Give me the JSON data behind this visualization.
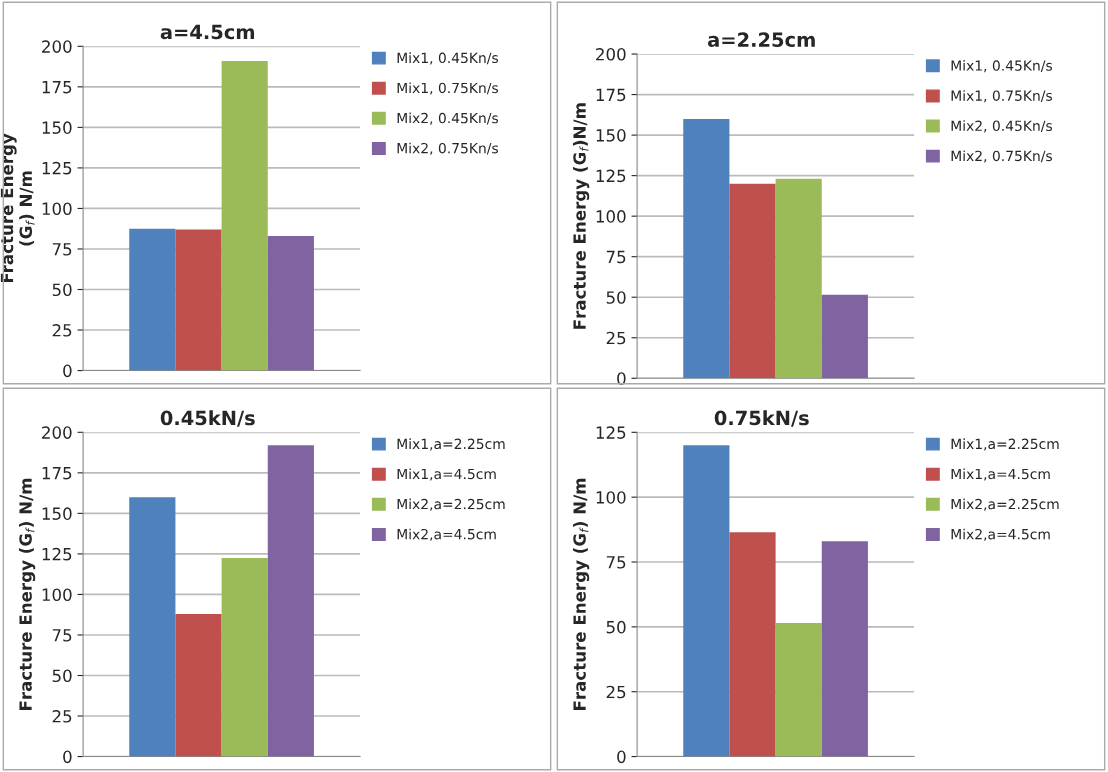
{
  "chart_data": [
    {
      "type": "bar",
      "title": "a=4.5cm",
      "ylabel": "Fracture Energy\n(G$_{f}$) N/m",
      "categories": [
        null
      ],
      "ylim": [
        0,
        200
      ],
      "yticks": [
        0,
        25,
        50,
        75,
        100,
        125,
        150,
        175,
        200
      ],
      "grid": "y",
      "legend": "right",
      "series": [
        {
          "name": "Mix1, 0.45Kn/s",
          "color": "#4f81bd",
          "values": [
            87.5
          ]
        },
        {
          "name": "Mix1, 0.75Kn/s",
          "color": "#c0504d",
          "values": [
            87
          ]
        },
        {
          "name": "Mix2, 0.45Kn/s",
          "color": "#9bbb59",
          "values": [
            191
          ]
        },
        {
          "name": "Mix2, 0.75Kn/s",
          "color": "#8064a2",
          "values": [
            83
          ]
        }
      ]
    },
    {
      "type": "bar",
      "title": "a=2.25cm",
      "ylabel": "Fracture Energy (G$_{f}$)N/m",
      "categories": [
        null
      ],
      "ylim": [
        0,
        200
      ],
      "yticks": [
        0,
        25,
        50,
        75,
        100,
        125,
        150,
        175,
        200
      ],
      "grid": "y",
      "legend": "right",
      "series": [
        {
          "name": "Mix1, 0.45Kn/s",
          "color": "#4f81bd",
          "values": [
            160
          ]
        },
        {
          "name": "Mix1, 0.75Kn/s",
          "color": "#c0504d",
          "values": [
            120
          ]
        },
        {
          "name": "Mix2, 0.45Kn/s",
          "color": "#9bbb59",
          "values": [
            123
          ]
        },
        {
          "name": "Mix2, 0.75Kn/s",
          "color": "#8064a2",
          "values": [
            51.5
          ]
        }
      ]
    },
    {
      "type": "bar",
      "title": "0.45kN/s",
      "ylabel": "Fracture Energy (G$_{f}$) N/m",
      "categories": [
        null
      ],
      "ylim": [
        0,
        200
      ],
      "yticks": [
        0,
        25,
        50,
        75,
        100,
        125,
        150,
        175,
        200
      ],
      "grid": "y",
      "legend": "right",
      "series": [
        {
          "name": "Mix1,a=2.25cm",
          "color": "#4f81bd",
          "values": [
            160
          ]
        },
        {
          "name": "Mix1,a=4.5cm",
          "color": "#c0504d",
          "values": [
            88
          ]
        },
        {
          "name": "Mix2,a=2.25cm",
          "color": "#9bbb59",
          "values": [
            122.5
          ]
        },
        {
          "name": "Mix2,a=4.5cm",
          "color": "#8064a2",
          "values": [
            192
          ]
        }
      ]
    },
    {
      "type": "bar",
      "title": "0.75kN/s",
      "ylabel": "Fracture Energy (G$_{f}$) N/m",
      "categories": [
        null
      ],
      "ylim": [
        0,
        125
      ],
      "yticks": [
        0,
        25,
        50,
        75,
        100,
        125
      ],
      "grid": "y",
      "legend": "right",
      "series": [
        {
          "name": "Mix1,a=2.25cm",
          "color": "#4f81bd",
          "values": [
            120
          ]
        },
        {
          "name": "Mix1,a=4.5cm",
          "color": "#c0504d",
          "values": [
            86.5
          ]
        },
        {
          "name": "Mix2,a=2.25cm",
          "color": "#9bbb59",
          "values": [
            51.5
          ]
        },
        {
          "name": "Mix2,a=4.5cm",
          "color": "#8064a2",
          "values": [
            83
          ]
        }
      ]
    }
  ]
}
